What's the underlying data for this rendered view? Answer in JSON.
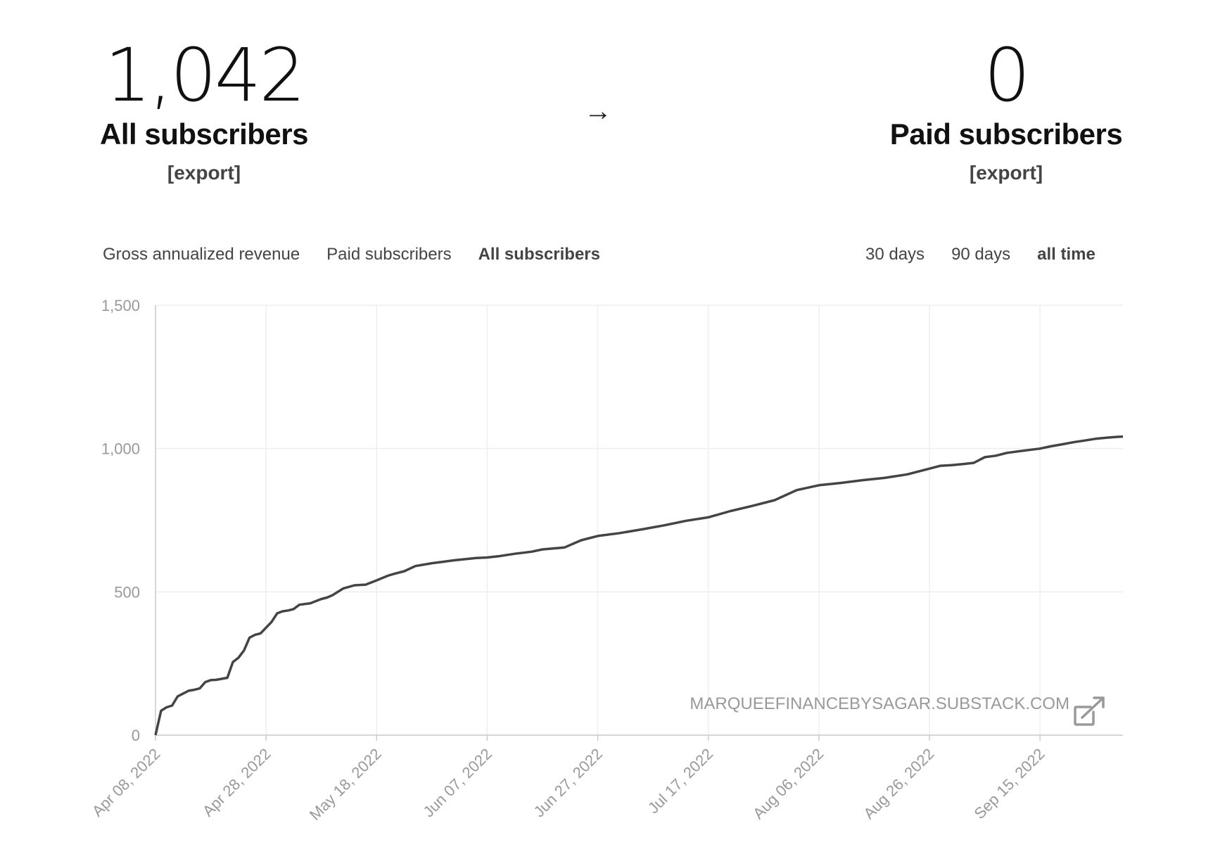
{
  "summary": {
    "left": {
      "value": "1,042",
      "label": "All subscribers",
      "export_label": "[export]"
    },
    "arrow": "→",
    "right": {
      "value": "0",
      "label": "Paid subscribers",
      "export_label": "[export]"
    }
  },
  "metric_tabs": [
    {
      "label": "Gross annualized revenue",
      "active": false
    },
    {
      "label": "Paid subscribers",
      "active": false
    },
    {
      "label": "All subscribers",
      "active": true
    }
  ],
  "range_tabs": [
    {
      "label": "30 days",
      "active": false
    },
    {
      "label": "90 days",
      "active": false
    },
    {
      "label": "all time",
      "active": true
    }
  ],
  "watermark": "MARQUEEFINANCEBYSAGAR.SUBSTACK.COM",
  "icons": {
    "watermark": "external-link-icon"
  },
  "colors": {
    "line": "#444444",
    "grid": "#eeeeee",
    "axis": "#cccccc",
    "text_muted": "#999999"
  },
  "chart_data": {
    "type": "line",
    "title": "All subscribers",
    "xlabel": "",
    "ylabel": "",
    "ylim": [
      0,
      1500
    ],
    "yticks": [
      0,
      500,
      1000,
      1500
    ],
    "ytick_labels": [
      "0",
      "500",
      "1,000",
      "1,500"
    ],
    "xlim": [
      0,
      175
    ],
    "xticks": [
      0,
      20,
      40,
      60,
      80,
      100,
      120,
      140,
      160
    ],
    "xtick_labels": [
      "Apr 08, 2022",
      "Apr 28, 2022",
      "May 18, 2022",
      "Jun 07, 2022",
      "Jun 27, 2022",
      "Jul 17, 2022",
      "Aug 06, 2022",
      "Aug 26, 2022",
      "Sep 15, 2022"
    ],
    "grid": true,
    "series": [
      {
        "name": "All subscribers",
        "x": [
          0,
          1,
          2,
          3,
          4,
          5,
          6,
          7,
          8,
          9,
          10,
          11,
          13,
          14,
          15,
          16,
          17,
          18,
          19,
          20,
          21,
          22,
          23,
          24,
          25,
          26,
          28,
          30,
          31,
          32,
          34,
          36,
          38,
          40,
          42,
          43,
          45,
          47,
          50,
          52,
          54,
          56,
          58,
          60,
          62,
          65,
          68,
          70,
          74,
          77,
          80,
          84,
          88,
          92,
          96,
          100,
          104,
          108,
          112,
          116,
          120,
          124,
          128,
          132,
          136,
          140,
          142,
          144,
          146,
          148,
          150,
          152,
          154,
          156,
          158,
          160,
          162,
          164,
          166,
          168,
          170,
          172,
          174,
          175
        ],
        "values": [
          0,
          85,
          97,
          103,
          135,
          145,
          155,
          158,
          163,
          185,
          192,
          193,
          200,
          255,
          270,
          295,
          340,
          350,
          355,
          375,
          395,
          425,
          432,
          435,
          440,
          455,
          460,
          475,
          480,
          488,
          512,
          523,
          525,
          540,
          556,
          562,
          572,
          590,
          600,
          605,
          610,
          614,
          618,
          620,
          624,
          633,
          640,
          648,
          655,
          680,
          695,
          705,
          718,
          732,
          748,
          760,
          782,
          800,
          820,
          855,
          872,
          880,
          890,
          898,
          910,
          930,
          940,
          942,
          946,
          950,
          970,
          975,
          985,
          990,
          995,
          1000,
          1008,
          1015,
          1022,
          1028,
          1034,
          1038,
          1041,
          1042
        ]
      }
    ]
  }
}
